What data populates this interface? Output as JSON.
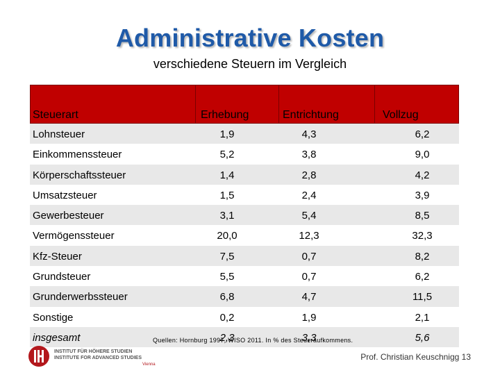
{
  "title": "Administrative Kosten",
  "subtitle": "verschiedene Steuern im Vergleich",
  "table": {
    "headers": [
      "Steuerart",
      "Erhebung",
      "Entrichtung",
      "Vollzug"
    ],
    "rows": [
      {
        "name": "Lohnsteuer",
        "erhebung": "1,9",
        "entrichtung": "4,3",
        "vollzug": "6,2"
      },
      {
        "name": "Einkommenssteuer",
        "erhebung": "5,2",
        "entrichtung": "3,8",
        "vollzug": "9,0"
      },
      {
        "name": "Körperschaftssteuer",
        "erhebung": "1,4",
        "entrichtung": "2,8",
        "vollzug": "4,2"
      },
      {
        "name": "Umsatzsteuer",
        "erhebung": "1,5",
        "entrichtung": "2,4",
        "vollzug": "3,9"
      },
      {
        "name": "Gewerbesteuer",
        "erhebung": "3,1",
        "entrichtung": "5,4",
        "vollzug": "8,5"
      },
      {
        "name": "Vermögenssteuer",
        "erhebung": "20,0",
        "entrichtung": "12,3",
        "vollzug": "32,3"
      },
      {
        "name": "Kfz-Steuer",
        "erhebung": "7,5",
        "entrichtung": "0,7",
        "vollzug": "8,2"
      },
      {
        "name": "Grundsteuer",
        "erhebung": "5,5",
        "entrichtung": "0,7",
        "vollzug": "6,2"
      },
      {
        "name": "Grunderwerbssteuer",
        "erhebung": "6,8",
        "entrichtung": "4,7",
        "vollzug": "11,5"
      },
      {
        "name": "Sonstige",
        "erhebung": "0,2",
        "entrichtung": "1,9",
        "vollzug": "2,1"
      },
      {
        "name": "insgesamt",
        "erhebung": "2,3",
        "entrichtung": "3,3",
        "vollzug": "5,6"
      }
    ]
  },
  "source": "Quellen: Hornburg 1997, WISO 2011. In % des Steueraufkommens.",
  "logo": {
    "line1": "INSTITUT FÜR HÖHERE STUDIEN",
    "line2": "INSTITUTE FOR ADVANCED STUDIES",
    "line3": "Vienna"
  },
  "footer": "Prof. Christian Keuschnigg 13",
  "colors": {
    "title": "#1f5aa8",
    "header_bg": "#c00000",
    "row_alt": "#e8e8e8",
    "logo_red": "#b3171c"
  }
}
